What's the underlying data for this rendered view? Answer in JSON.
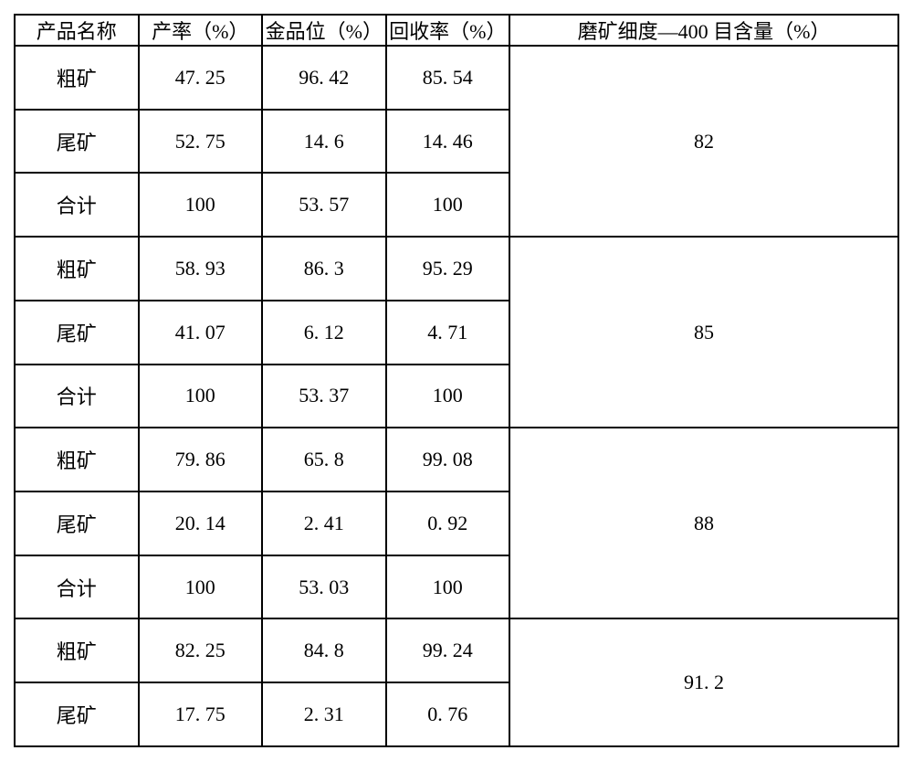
{
  "table": {
    "columns": [
      "产品名称",
      "产率（%）",
      "金品位（%）",
      "回收率（%）",
      "磨矿细度—400 目含量（%）"
    ],
    "groups": [
      {
        "fineness": "82",
        "rows": [
          {
            "product": "粗矿",
            "yield": "47. 25",
            "grade": "96. 42",
            "recovery": "85. 54"
          },
          {
            "product": "尾矿",
            "yield": "52. 75",
            "grade": "14. 6",
            "recovery": "14. 46"
          },
          {
            "product": "合计",
            "yield": "100",
            "grade": "53. 57",
            "recovery": "100"
          }
        ]
      },
      {
        "fineness": "85",
        "rows": [
          {
            "product": "粗矿",
            "yield": "58. 93",
            "grade": "86. 3",
            "recovery": "95. 29"
          },
          {
            "product": "尾矿",
            "yield": "41. 07",
            "grade": "6. 12",
            "recovery": "4. 71"
          },
          {
            "product": "合计",
            "yield": "100",
            "grade": "53. 37",
            "recovery": "100"
          }
        ]
      },
      {
        "fineness": "88",
        "rows": [
          {
            "product": "粗矿",
            "yield": "79. 86",
            "grade": "65. 8",
            "recovery": "99. 08"
          },
          {
            "product": "尾矿",
            "yield": "20. 14",
            "grade": "2. 41",
            "recovery": "0. 92"
          },
          {
            "product": "合计",
            "yield": "100",
            "grade": "53. 03",
            "recovery": "100"
          }
        ]
      },
      {
        "fineness": "91. 2",
        "rows": [
          {
            "product": "粗矿",
            "yield": "82. 25",
            "grade": "84. 8",
            "recovery": "99. 24"
          },
          {
            "product": "尾矿",
            "yield": "17. 75",
            "grade": "2. 31",
            "recovery": "0. 76"
          }
        ]
      }
    ]
  }
}
